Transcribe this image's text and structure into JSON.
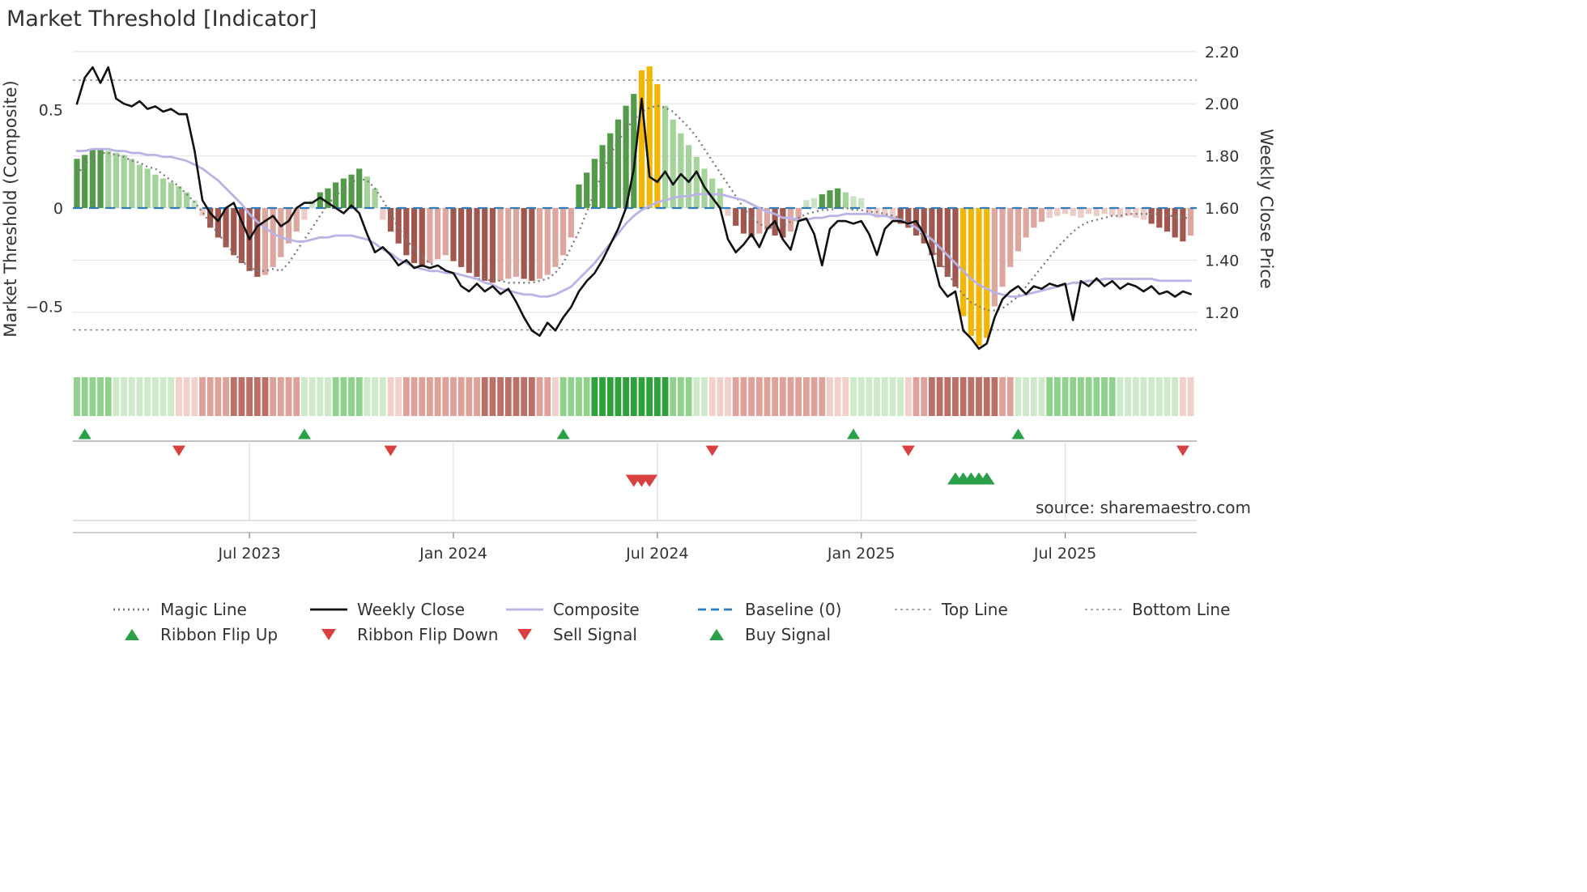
{
  "title": "Market Threshold [Indicator]",
  "source": "source: sharemaestro.com",
  "axes": {
    "left_label": "Market Threshold (Composite)",
    "right_label": "Weekly Close Price",
    "left_ticks": [
      {
        "v": 0.5,
        "label": "0.5"
      },
      {
        "v": 0.0,
        "label": "0"
      },
      {
        "v": -0.5,
        "label": "−0.5"
      }
    ],
    "right_ticks": [
      {
        "v": 2.2,
        "label": "2.20"
      },
      {
        "v": 2.0,
        "label": "2.00"
      },
      {
        "v": 1.8,
        "label": "1.80"
      },
      {
        "v": 1.6,
        "label": "1.60"
      },
      {
        "v": 1.4,
        "label": "1.40"
      },
      {
        "v": 1.2,
        "label": "1.20"
      }
    ],
    "x_ticks": [
      {
        "week": 22,
        "label": "Jul 2023"
      },
      {
        "week": 48,
        "label": "Jan 2024"
      },
      {
        "week": 74,
        "label": "Jul 2024"
      },
      {
        "week": 100,
        "label": "Jan 2025"
      },
      {
        "week": 126,
        "label": "Jul 2025"
      }
    ]
  },
  "chart_data": {
    "type": "mixed",
    "x_unit": "week_index",
    "n_weeks": 143,
    "x_range_note": "weekly data, approx Feb 2023 to Oct 2025",
    "left_axis": {
      "label": "Market Threshold (Composite)",
      "ticks": [
        0.5,
        0,
        -0.5
      ],
      "range": [
        -0.81,
        0.81
      ]
    },
    "right_axis": {
      "label": "Weekly Close Price",
      "ticks": [
        2.2,
        2.0,
        1.8,
        1.6,
        1.4,
        1.2
      ],
      "range": [
        1.0,
        2.25
      ]
    },
    "reference_lines": {
      "baseline": 0,
      "top_line": 0.65,
      "bottom_line": -0.62
    },
    "gold_weeks": [
      72,
      73,
      74,
      113,
      114,
      115,
      116
    ],
    "series": [
      {
        "name": "Market Threshold (bars)",
        "type": "bar",
        "axis": "left",
        "values": [
          0.25,
          0.27,
          0.3,
          0.3,
          0.29,
          0.28,
          0.27,
          0.25,
          0.22,
          0.2,
          0.17,
          0.15,
          0.13,
          0.11,
          0.08,
          0.04,
          -0.04,
          -0.1,
          -0.15,
          -0.2,
          -0.24,
          -0.28,
          -0.32,
          -0.35,
          -0.34,
          -0.3,
          -0.25,
          -0.18,
          -0.12,
          -0.06,
          0.04,
          0.08,
          0.1,
          0.13,
          0.15,
          0.17,
          0.2,
          0.16,
          0.1,
          -0.06,
          -0.12,
          -0.18,
          -0.24,
          -0.28,
          -0.3,
          -0.28,
          -0.26,
          -0.24,
          -0.27,
          -0.3,
          -0.33,
          -0.35,
          -0.37,
          -0.38,
          -0.37,
          -0.36,
          -0.35,
          -0.36,
          -0.37,
          -0.36,
          -0.34,
          -0.3,
          -0.24,
          -0.15,
          0.12,
          0.18,
          0.25,
          0.32,
          0.38,
          0.45,
          0.52,
          0.58,
          0.7,
          0.72,
          0.63,
          0.52,
          0.45,
          0.38,
          0.32,
          0.26,
          0.2,
          0.15,
          0.1,
          -0.04,
          -0.09,
          -0.13,
          -0.15,
          -0.13,
          -0.11,
          -0.14,
          -0.15,
          -0.12,
          -0.07,
          0.04,
          0.05,
          0.07,
          0.09,
          0.1,
          0.08,
          0.06,
          0.05,
          -0.03,
          -0.05,
          -0.04,
          -0.06,
          -0.08,
          -0.1,
          -0.14,
          -0.18,
          -0.24,
          -0.3,
          -0.35,
          -0.4,
          -0.55,
          -0.65,
          -0.7,
          -0.66,
          -0.5,
          -0.4,
          -0.3,
          -0.22,
          -0.15,
          -0.1,
          -0.07,
          -0.05,
          -0.04,
          -0.03,
          -0.04,
          -0.05,
          -0.03,
          -0.04,
          -0.03,
          -0.04,
          -0.05,
          -0.04,
          -0.05,
          -0.06,
          -0.08,
          -0.1,
          -0.12,
          -0.15,
          -0.17,
          -0.14
        ]
      },
      {
        "name": "Weekly Close",
        "type": "line",
        "axis": "right",
        "values": [
          2.0,
          2.1,
          2.14,
          2.08,
          2.14,
          2.02,
          2.0,
          1.99,
          2.01,
          1.98,
          1.99,
          1.97,
          1.98,
          1.96,
          1.96,
          1.82,
          1.63,
          1.58,
          1.55,
          1.6,
          1.62,
          1.55,
          1.48,
          1.53,
          1.55,
          1.57,
          1.53,
          1.55,
          1.6,
          1.62,
          1.62,
          1.64,
          1.62,
          1.6,
          1.58,
          1.61,
          1.58,
          1.5,
          1.43,
          1.45,
          1.42,
          1.38,
          1.4,
          1.37,
          1.38,
          1.37,
          1.38,
          1.36,
          1.35,
          1.3,
          1.28,
          1.31,
          1.28,
          1.3,
          1.27,
          1.29,
          1.24,
          1.18,
          1.13,
          1.11,
          1.16,
          1.13,
          1.18,
          1.22,
          1.28,
          1.32,
          1.35,
          1.4,
          1.46,
          1.52,
          1.6,
          1.75,
          2.02,
          1.72,
          1.7,
          1.74,
          1.69,
          1.73,
          1.7,
          1.74,
          1.68,
          1.64,
          1.6,
          1.48,
          1.43,
          1.46,
          1.5,
          1.45,
          1.52,
          1.55,
          1.48,
          1.44,
          1.55,
          1.56,
          1.5,
          1.38,
          1.52,
          1.55,
          1.55,
          1.54,
          1.55,
          1.5,
          1.42,
          1.52,
          1.55,
          1.55,
          1.54,
          1.55,
          1.5,
          1.42,
          1.3,
          1.26,
          1.28,
          1.13,
          1.1,
          1.06,
          1.08,
          1.18,
          1.25,
          1.28,
          1.3,
          1.27,
          1.3,
          1.29,
          1.31,
          1.3,
          1.31,
          1.17,
          1.32,
          1.3,
          1.33,
          1.3,
          1.32,
          1.29,
          1.31,
          1.3,
          1.28,
          1.3,
          1.27,
          1.28,
          1.26,
          1.28,
          1.27
        ]
      },
      {
        "name": "Composite",
        "type": "line",
        "axis": "left",
        "values": [
          0.29,
          0.29,
          0.3,
          0.3,
          0.3,
          0.29,
          0.29,
          0.28,
          0.28,
          0.27,
          0.27,
          0.26,
          0.26,
          0.25,
          0.24,
          0.22,
          0.2,
          0.17,
          0.14,
          0.1,
          0.06,
          0.02,
          -0.03,
          -0.07,
          -0.1,
          -0.13,
          -0.15,
          -0.16,
          -0.17,
          -0.17,
          -0.16,
          -0.15,
          -0.15,
          -0.14,
          -0.14,
          -0.14,
          -0.15,
          -0.16,
          -0.18,
          -0.21,
          -0.23,
          -0.26,
          -0.28,
          -0.3,
          -0.31,
          -0.32,
          -0.32,
          -0.33,
          -0.33,
          -0.34,
          -0.35,
          -0.36,
          -0.38,
          -0.39,
          -0.41,
          -0.42,
          -0.43,
          -0.44,
          -0.44,
          -0.45,
          -0.45,
          -0.44,
          -0.42,
          -0.4,
          -0.36,
          -0.32,
          -0.28,
          -0.23,
          -0.18,
          -0.13,
          -0.08,
          -0.04,
          -0.01,
          0.01,
          0.03,
          0.04,
          0.05,
          0.06,
          0.06,
          0.07,
          0.07,
          0.07,
          0.07,
          0.06,
          0.05,
          0.04,
          0.02,
          0.0,
          -0.02,
          -0.03,
          -0.05,
          -0.05,
          -0.06,
          -0.06,
          -0.05,
          -0.05,
          -0.04,
          -0.04,
          -0.03,
          -0.03,
          -0.03,
          -0.03,
          -0.04,
          -0.04,
          -0.05,
          -0.06,
          -0.08,
          -0.1,
          -0.13,
          -0.16,
          -0.2,
          -0.24,
          -0.28,
          -0.32,
          -0.36,
          -0.39,
          -0.41,
          -0.43,
          -0.44,
          -0.45,
          -0.45,
          -0.44,
          -0.43,
          -0.42,
          -0.41,
          -0.4,
          -0.39,
          -0.38,
          -0.38,
          -0.37,
          -0.37,
          -0.36,
          -0.36,
          -0.36,
          -0.36,
          -0.36,
          -0.36,
          -0.36,
          -0.37,
          -0.37,
          -0.37,
          -0.37,
          -0.37
        ]
      },
      {
        "name": "Magic Line",
        "type": "line",
        "style": "dotted",
        "axis": "left",
        "values": [
          0.17,
          0.22,
          0.26,
          0.28,
          0.28,
          0.27,
          0.26,
          0.24,
          0.23,
          0.21,
          0.2,
          0.17,
          0.14,
          0.11,
          0.07,
          0.03,
          -0.02,
          -0.08,
          -0.13,
          -0.18,
          -0.23,
          -0.27,
          -0.3,
          -0.32,
          -0.32,
          -0.31,
          -0.32,
          -0.28,
          -0.22,
          -0.16,
          -0.1,
          -0.04,
          0.02,
          0.06,
          0.1,
          0.13,
          0.15,
          0.14,
          0.1,
          0.04,
          -0.03,
          -0.1,
          -0.16,
          -0.21,
          -0.25,
          -0.28,
          -0.3,
          -0.32,
          -0.33,
          -0.34,
          -0.35,
          -0.36,
          -0.36,
          -0.37,
          -0.37,
          -0.38,
          -0.38,
          -0.38,
          -0.38,
          -0.37,
          -0.36,
          -0.33,
          -0.28,
          -0.2,
          -0.12,
          -0.02,
          0.08,
          0.18,
          0.27,
          0.34,
          0.4,
          0.45,
          0.49,
          0.51,
          0.52,
          0.51,
          0.49,
          0.45,
          0.41,
          0.36,
          0.3,
          0.24,
          0.18,
          0.12,
          0.06,
          0.0,
          -0.05,
          -0.08,
          -0.1,
          -0.1,
          -0.09,
          -0.07,
          -0.05,
          -0.03,
          -0.02,
          -0.01,
          -0.01,
          0.0,
          0.0,
          -0.01,
          -0.01,
          -0.02,
          -0.02,
          -0.03,
          -0.04,
          -0.05,
          -0.07,
          -0.1,
          -0.15,
          -0.2,
          -0.27,
          -0.33,
          -0.39,
          -0.44,
          -0.48,
          -0.5,
          -0.52,
          -0.52,
          -0.51,
          -0.48,
          -0.45,
          -0.4,
          -0.35,
          -0.3,
          -0.25,
          -0.2,
          -0.16,
          -0.12,
          -0.09,
          -0.07,
          -0.06,
          -0.05,
          -0.04,
          -0.04,
          -0.03,
          -0.03,
          -0.03,
          -0.03,
          -0.03,
          -0.04,
          -0.04,
          -0.05,
          -0.05
        ]
      }
    ],
    "ribbon": [
      "g2",
      "g2",
      "g2",
      "g2",
      "g2",
      "g1",
      "g1",
      "g1",
      "g1",
      "g1",
      "g1",
      "g1",
      "g1",
      "r1",
      "r1",
      "r1",
      "r2",
      "r2",
      "r2",
      "r2",
      "r3",
      "r3",
      "r3",
      "r3",
      "r3",
      "r2",
      "r2",
      "r2",
      "r2",
      "g1",
      "g1",
      "g1",
      "g1",
      "g2",
      "g2",
      "g2",
      "g2",
      "g1",
      "g1",
      "g1",
      "r1",
      "r1",
      "r2",
      "r2",
      "r2",
      "r2",
      "r2",
      "r2",
      "r2",
      "r2",
      "r2",
      "r2",
      "r3",
      "r3",
      "r3",
      "r3",
      "r3",
      "r3",
      "r3",
      "r2",
      "r2",
      "r1",
      "g2",
      "g2",
      "g2",
      "g2",
      "g3",
      "g3",
      "g3",
      "g3",
      "g3",
      "g3",
      "g3",
      "g3",
      "g3",
      "g3",
      "g2",
      "g2",
      "g2",
      "g1",
      "g1",
      "r1",
      "r1",
      "r1",
      "r2",
      "r2",
      "r2",
      "r2",
      "r2",
      "r2",
      "r2",
      "r2",
      "r2",
      "r2",
      "r2",
      "r2",
      "r1",
      "r1",
      "r1",
      "g1",
      "g1",
      "g1",
      "g1",
      "g1",
      "g1",
      "g1",
      "r1",
      "r2",
      "r2",
      "r3",
      "r3",
      "r3",
      "r3",
      "r3",
      "r3",
      "r3",
      "r3",
      "r3",
      "r2",
      "r2",
      "g1",
      "g1",
      "g1",
      "g1",
      "g2",
      "g2",
      "g2",
      "g2",
      "g2",
      "g2",
      "g2",
      "g2",
      "g2",
      "g1",
      "g1",
      "g1",
      "g1",
      "g1",
      "g1",
      "g1",
      "g1",
      "r1",
      "r1"
    ],
    "signals": {
      "ribbon_flip_up_weeks": [
        1,
        29,
        62,
        99,
        120
      ],
      "ribbon_flip_down_weeks": [
        13,
        40,
        81,
        106,
        141
      ],
      "sell_signal_weeks": [
        71,
        72,
        73
      ],
      "buy_signal_weeks": [
        112,
        113,
        114,
        115,
        116
      ]
    }
  },
  "legend": {
    "items": [
      {
        "label": "Magic Line",
        "type": "line-dotted",
        "color": "#7a7a7a",
        "row": 0,
        "col": 0
      },
      {
        "label": "Weekly Close",
        "type": "line",
        "color": "#111111",
        "row": 0,
        "col": 1
      },
      {
        "label": "Composite",
        "type": "line",
        "color": "#b9b3e6",
        "row": 0,
        "col": 2
      },
      {
        "label": "Baseline (0)",
        "type": "line-dashed",
        "color": "#2e7dba",
        "row": 0,
        "col": 3
      },
      {
        "label": "Top Line",
        "type": "line-dashed-fine",
        "color": "#8c8c8c",
        "row": 0,
        "col": 4
      },
      {
        "label": "Bottom Line",
        "type": "line-dashed-fine",
        "color": "#8c8c8c",
        "row": 0,
        "col": 5
      },
      {
        "label": "Ribbon Flip Up",
        "type": "triangle-up",
        "color": "#2aa148",
        "row": 1,
        "col": 0
      },
      {
        "label": "Ribbon Flip Down",
        "type": "triangle-down",
        "color": "#d94040",
        "row": 1,
        "col": 1
      },
      {
        "label": "Sell Signal",
        "type": "triangle-down",
        "color": "#d94040",
        "row": 1,
        "col": 2
      },
      {
        "label": "Buy Signal",
        "type": "triangle-up",
        "color": "#2aa148",
        "row": 1,
        "col": 3
      }
    ]
  },
  "colors": {
    "bar_pos_rise": "#539a49",
    "bar_pos_fall": "#a6d39c",
    "bar_pos_small": "#c9e4c3",
    "bar_neg_deepen": "#a2574e",
    "bar_neg_recover": "#dda69e",
    "bar_neg_small": "#edccc7",
    "gold": "#f2b705",
    "weekly_close": "#111111",
    "composite": "#b9b3e6",
    "magic": "#7a7a7a",
    "baseline": "#2e7dba",
    "threshold_line": "#8c8c8c",
    "grid": "#e8e8e8",
    "up_marker": "#2aa148",
    "down_marker": "#d94040",
    "panel_line": "#b5b5b5",
    "text": "#333333",
    "muted_text": "#999999"
  },
  "ribbon_palette": {
    "g1": "#cfe9cb",
    "g2": "#8fd28b",
    "g3": "#2fa13c",
    "r1": "#f2d0cc",
    "r2": "#dfa29a",
    "r3": "#bc6f66"
  }
}
